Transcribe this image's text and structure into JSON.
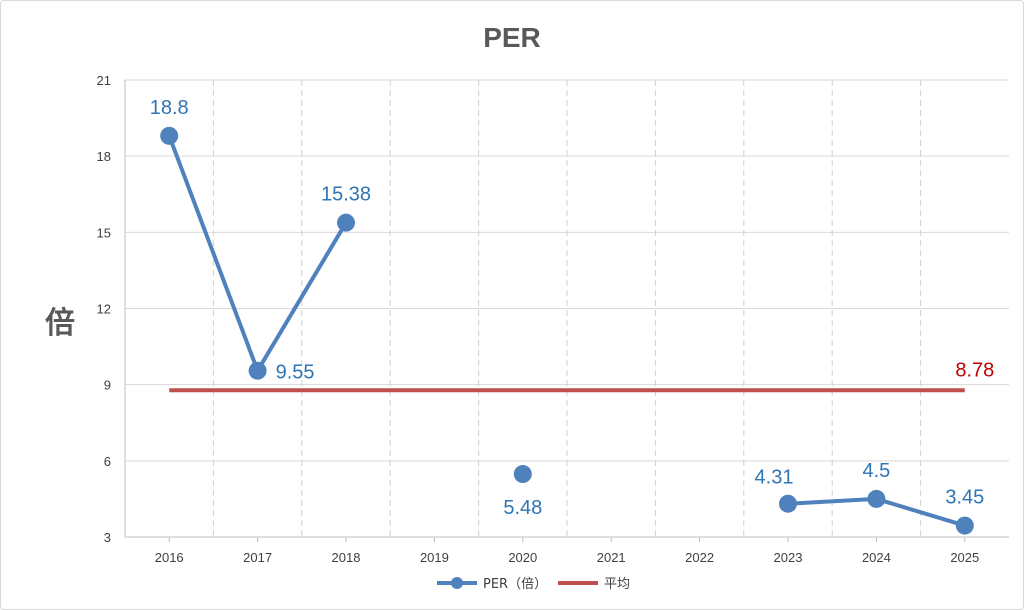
{
  "chart_data": {
    "type": "line",
    "title": "PER",
    "ylabel": "倍",
    "xlabel": "",
    "categories": [
      "2016",
      "2017",
      "2018",
      "2019",
      "2020",
      "2021",
      "2022",
      "2023",
      "2024",
      "2025"
    ],
    "ylim": [
      3,
      21
    ],
    "yticks": [
      3,
      6,
      9,
      12,
      15,
      18,
      21
    ],
    "grid": {
      "x": true,
      "y": true,
      "x_style": "dashed",
      "y_style": "solid"
    },
    "legend": "bottom",
    "series": [
      {
        "name": "PER（倍）",
        "color": "#4f81bd",
        "label_color": "#2e75b6",
        "marker": "circle",
        "values": [
          18.8,
          9.55,
          15.38,
          null,
          5.48,
          null,
          null,
          4.31,
          4.5,
          3.45
        ],
        "labels": [
          "18.8",
          "9.55",
          "15.38",
          "",
          "5.48",
          "",
          "",
          "4.31",
          "4.5",
          "3.45"
        ]
      },
      {
        "name": "平均",
        "color": "#c0504d",
        "label_color": "#c00000",
        "marker": "none",
        "values": [
          8.78,
          8.78,
          8.78,
          8.78,
          8.78,
          8.78,
          8.78,
          8.78,
          8.78,
          8.78
        ],
        "labels": [
          "",
          "",
          "",
          "",
          "",
          "",
          "",
          "",
          "",
          "8.78"
        ]
      }
    ]
  }
}
